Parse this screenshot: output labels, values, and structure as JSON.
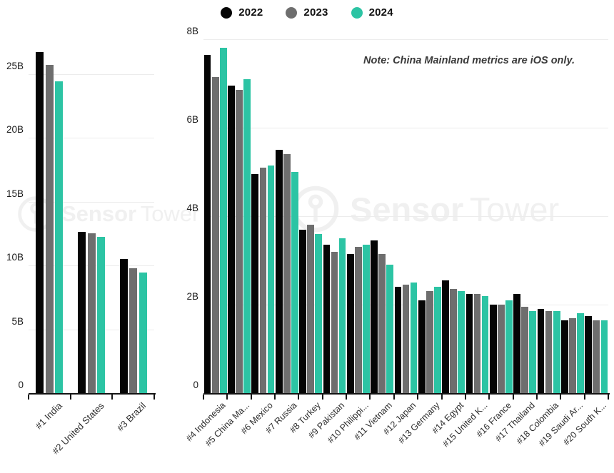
{
  "legend": {
    "items": [
      {
        "label": "2022",
        "color": "#050505"
      },
      {
        "label": "2023",
        "color": "#6e6e6e"
      },
      {
        "label": "2024",
        "color": "#2cc4a4"
      }
    ]
  },
  "note": {
    "text": "Note: China Mainland metrics are iOS only."
  },
  "watermark": {
    "brand_first": "Sensor",
    "brand_second": "Tower",
    "color": "#f0f0f0"
  },
  "chart_data": [
    {
      "type": "bar",
      "panel": "top-3-countries-downloads",
      "unit": "B",
      "categories": [
        "#1 India",
        "#2 United States",
        "#3 Brazil"
      ],
      "series": [
        {
          "name": "2022",
          "color": "#050505",
          "values": [
            26.7,
            12.6,
            10.5
          ]
        },
        {
          "name": "2023",
          "color": "#6e6e6e",
          "values": [
            25.7,
            12.5,
            9.8
          ]
        },
        {
          "name": "2024",
          "color": "#2cc4a4",
          "values": [
            24.4,
            12.25,
            9.45
          ]
        }
      ],
      "ylim": [
        0,
        27.4
      ],
      "yticks": [
        {
          "v": 0,
          "label": "0"
        },
        {
          "v": 5,
          "label": "5B"
        },
        {
          "v": 10,
          "label": "10B"
        },
        {
          "v": 15,
          "label": "15B"
        },
        {
          "v": 20,
          "label": "20B"
        },
        {
          "v": 25,
          "label": "25B"
        }
      ],
      "grid": true,
      "legend_position": "top-center-shared"
    },
    {
      "type": "bar",
      "panel": "countries-4-to-20-downloads",
      "unit": "B",
      "categories": [
        "#4 Indonesia",
        "#5 China Ma...",
        "#6 Mexico",
        "#7 Russia",
        "#8 Turkey",
        "#9 Pakistan",
        "#10 Philippi...",
        "#11 Vietnam",
        "#12 Japan",
        "#13 Germany",
        "#14 Egypt",
        "#15 United K...",
        "#16 France",
        "#17 Thailand",
        "#18 Colombia",
        "#19 Saudi Ar...",
        "#20 South K..."
      ],
      "series": [
        {
          "name": "2022",
          "color": "#050505",
          "values": [
            7.65,
            6.95,
            4.95,
            5.5,
            3.7,
            3.35,
            3.15,
            3.45,
            2.4,
            2.1,
            2.55,
            2.25,
            2.0,
            2.25,
            1.9,
            1.65,
            1.75
          ]
        },
        {
          "name": "2023",
          "color": "#6e6e6e",
          "values": [
            7.15,
            6.85,
            5.1,
            5.4,
            3.8,
            3.2,
            3.3,
            3.15,
            2.45,
            2.3,
            2.35,
            2.25,
            2.0,
            1.95,
            1.85,
            1.7,
            1.65
          ]
        },
        {
          "name": "2024",
          "color": "#2cc4a4",
          "values": [
            7.8,
            7.1,
            5.15,
            5.0,
            3.6,
            3.5,
            3.35,
            2.9,
            2.5,
            2.4,
            2.3,
            2.2,
            2.1,
            1.85,
            1.85,
            1.8,
            1.65
          ]
        }
      ],
      "ylim": [
        0,
        8
      ],
      "yticks": [
        {
          "v": 0,
          "label": "0"
        },
        {
          "v": 2,
          "label": "2B"
        },
        {
          "v": 4,
          "label": "4B"
        },
        {
          "v": 6,
          "label": "6B"
        },
        {
          "v": 8,
          "label": "8B"
        }
      ],
      "grid": true,
      "legend_position": "top-center-shared"
    }
  ]
}
